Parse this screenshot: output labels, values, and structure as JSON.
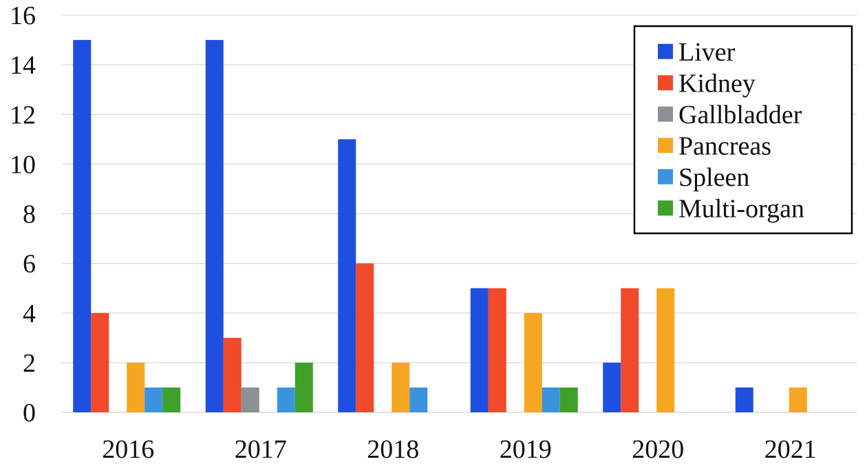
{
  "chart_data": {
    "type": "bar",
    "title": "",
    "xlabel": "",
    "ylabel": "",
    "categories": [
      "2016",
      "2017",
      "2018",
      "2019",
      "2020",
      "2021"
    ],
    "ylim": [
      0,
      16
    ],
    "yticks": [
      0,
      2,
      4,
      6,
      8,
      10,
      12,
      14,
      16
    ],
    "grid": true,
    "legend_position": "top-right",
    "series": [
      {
        "name": "Liver",
        "color": "#1f4fe0",
        "values": [
          15,
          15,
          11,
          5,
          2,
          1
        ]
      },
      {
        "name": "Kidney",
        "color": "#f04a2a",
        "values": [
          4,
          3,
          6,
          5,
          5,
          0
        ]
      },
      {
        "name": "Gallbladder",
        "color": "#8c9196",
        "values": [
          0,
          1,
          0,
          0,
          0,
          0
        ]
      },
      {
        "name": "Pancreas",
        "color": "#f7a623",
        "values": [
          2,
          0,
          2,
          4,
          5,
          1
        ]
      },
      {
        "name": "Spleen",
        "color": "#3b93e0",
        "values": [
          1,
          1,
          1,
          1,
          0,
          0
        ]
      },
      {
        "name": "Multi-organ",
        "color": "#3fa02a",
        "values": [
          1,
          2,
          0,
          1,
          0,
          0
        ]
      }
    ]
  }
}
